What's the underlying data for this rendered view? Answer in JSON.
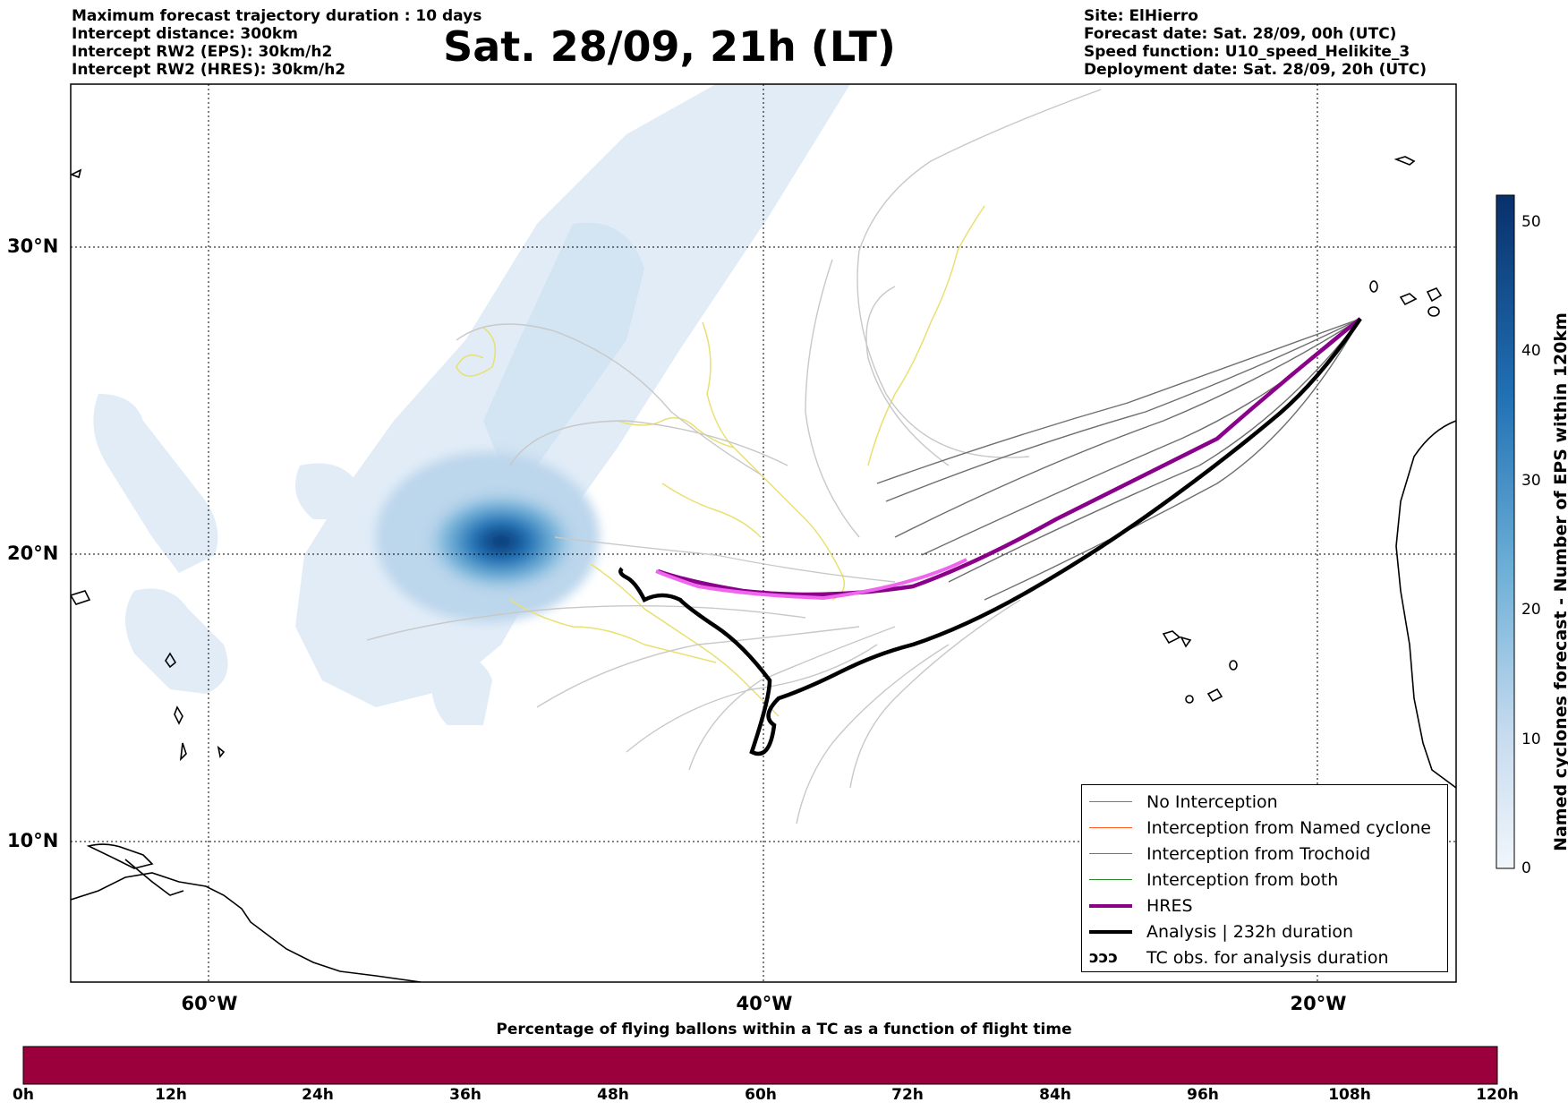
{
  "header_left": [
    "Maximum forecast trajectory duration : 10 days",
    "Intercept distance: 300km",
    "Intercept RW2 (EPS):  30km/h2",
    "Intercept RW2 (HRES): 30km/h2"
  ],
  "header_right": [
    "Site: ElHierro",
    "Forecast date: Sat. 28/09, 00h (UTC)",
    "Speed function: U10_speed_Helikite_3",
    "Deployment date: Sat. 28/09, 20h (UTC)"
  ],
  "title": "Sat. 28/09, 21h (LT)",
  "map": {
    "lat_labels": [
      "30°N",
      "20°N",
      "10°N"
    ],
    "lon_labels": [
      "60°W",
      "40°W",
      "20°W"
    ],
    "grid": "dotted",
    "colors": {
      "no_interception": "#7a7a7a",
      "named_cyclone": "#ff5a1f",
      "trochoid": "#7d7d2a",
      "both": "#2a8a2a",
      "hres": "#8b008b",
      "hres_highlight": "#ee66ee",
      "analysis": "#000000",
      "tc_obs": "#e8e070",
      "density_low": "#dce9f5",
      "density_high": "#08306b"
    }
  },
  "legend": {
    "items": [
      {
        "label": "No Interception",
        "color": "#7a7a7a",
        "style": "thin"
      },
      {
        "label": "Interception from Named cyclone",
        "color": "#ff5a1f",
        "style": "thin"
      },
      {
        "label": "Interception from Trochoid",
        "color": "#7d7d2a",
        "style": "thin"
      },
      {
        "label": "Interception from both",
        "color": "#2a8a2a",
        "style": "thin"
      },
      {
        "label": "HRES",
        "color": "#8b008b",
        "style": "thick"
      },
      {
        "label": "Analysis | 232h duration",
        "color": "#000000",
        "style": "thick"
      },
      {
        "label": "TC obs. for analysis duration",
        "color": "#000000",
        "style": "loops"
      }
    ]
  },
  "colorbar": {
    "label": "Named cyclones forecast - Number of EPS within 120km",
    "ticks": [
      "50",
      "40",
      "30",
      "20",
      "10",
      "0"
    ],
    "range": [
      0,
      52
    ]
  },
  "time_bar": {
    "title": "Percentage of flying ballons within a TC as a function of flight time",
    "ticks": [
      "0h",
      "12h",
      "24h",
      "36h",
      "48h",
      "60h",
      "72h",
      "84h",
      "96h",
      "108h",
      "120h"
    ],
    "fill_color": "#9b003c"
  }
}
